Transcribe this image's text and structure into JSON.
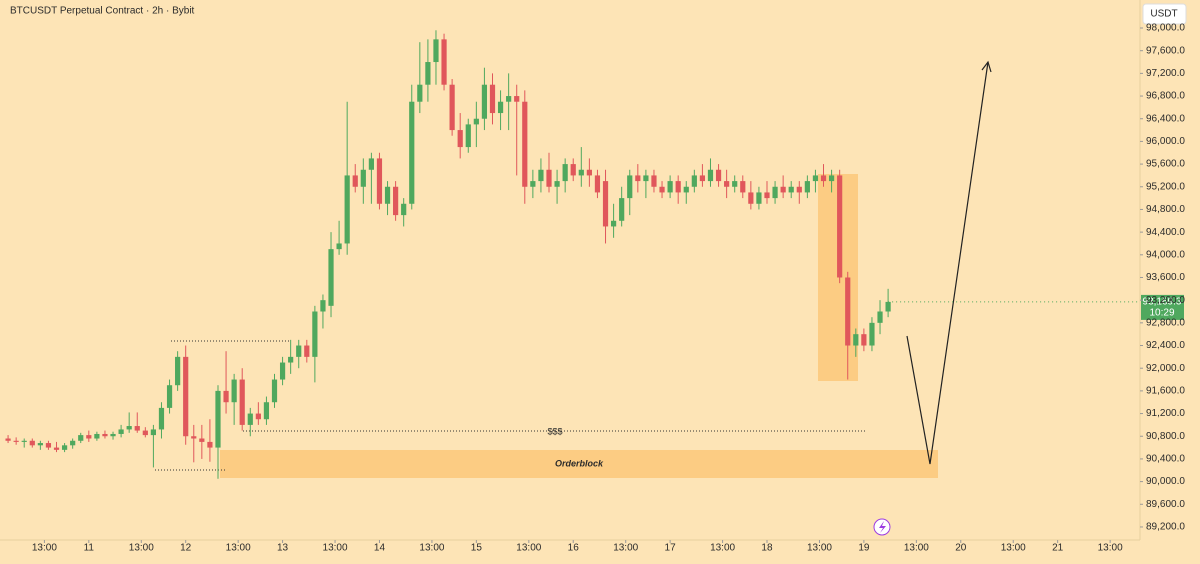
{
  "header": {
    "title": "BTCUSDT Perpetual Contract · 2h · Bybit",
    "currency": "USDT"
  },
  "chart_data": {
    "type": "candlestick",
    "colors": {
      "up": "#4fa85e",
      "down": "#e0575b"
    },
    "xlim": [
      -1,
      140.2
    ],
    "ylim": [
      88970,
      98494
    ],
    "xticks": [
      {
        "value": 4.5,
        "label": "13:00"
      },
      {
        "value": 10,
        "label": "11"
      },
      {
        "value": 16.5,
        "label": "13:00"
      },
      {
        "value": 22,
        "label": "12"
      },
      {
        "value": 28.5,
        "label": "13:00"
      },
      {
        "value": 34,
        "label": "13"
      },
      {
        "value": 40.5,
        "label": "13:00"
      },
      {
        "value": 46,
        "label": "14"
      },
      {
        "value": 52.5,
        "label": "13:00"
      },
      {
        "value": 58,
        "label": "15"
      },
      {
        "value": 64.5,
        "label": "13:00"
      },
      {
        "value": 70,
        "label": "16"
      },
      {
        "value": 76.5,
        "label": "13:00"
      },
      {
        "value": 82,
        "label": "17"
      },
      {
        "value": 88.5,
        "label": "13:00"
      },
      {
        "value": 94,
        "label": "18"
      },
      {
        "value": 100.5,
        "label": "13:00"
      },
      {
        "value": 106,
        "label": "19"
      },
      {
        "value": 112.5,
        "label": "13:00"
      },
      {
        "value": 118,
        "label": "20"
      },
      {
        "value": 124.5,
        "label": "13:00"
      },
      {
        "value": 130,
        "label": "21"
      },
      {
        "value": 136.5,
        "label": "13:00"
      }
    ],
    "yticks": [
      {
        "value": 89200,
        "label": "89,200.0"
      },
      {
        "value": 89600,
        "label": "89,600.0"
      },
      {
        "value": 90000,
        "label": "90,000.0"
      },
      {
        "value": 90400,
        "label": "90,400.0"
      },
      {
        "value": 90800,
        "label": "90,800.0"
      },
      {
        "value": 91200,
        "label": "91,200.0"
      },
      {
        "value": 91600,
        "label": "91,600.0"
      },
      {
        "value": 92000,
        "label": "92,000.0"
      },
      {
        "value": 92400,
        "label": "92,400.0"
      },
      {
        "value": 92800,
        "label": "92,800.0"
      },
      {
        "value": 93200,
        "label": "93,200.0"
      },
      {
        "value": 93600,
        "label": "93,600.0"
      },
      {
        "value": 94000,
        "label": "94,000.0"
      },
      {
        "value": 94400,
        "label": "94,400.0"
      },
      {
        "value": 94800,
        "label": "94,800.0"
      },
      {
        "value": 95200,
        "label": "95,200.0"
      },
      {
        "value": 95600,
        "label": "95,600.0"
      },
      {
        "value": 96000,
        "label": "96,000.0"
      },
      {
        "value": 96400,
        "label": "96,400.0"
      },
      {
        "value": 96800,
        "label": "96,800.0"
      },
      {
        "value": 97200,
        "label": "97,200.0"
      },
      {
        "value": 97600,
        "label": "97,600.0"
      },
      {
        "value": 98000,
        "label": "98,000.0"
      }
    ],
    "ohlc": [
      [
        90760,
        90820,
        90680,
        90720
      ],
      [
        90720,
        90780,
        90650,
        90700
      ],
      [
        90700,
        90760,
        90600,
        90720
      ],
      [
        90720,
        90760,
        90600,
        90640
      ],
      [
        90640,
        90720,
        90560,
        90680
      ],
      [
        90680,
        90720,
        90560,
        90600
      ],
      [
        90600,
        90700,
        90520,
        90560
      ],
      [
        90560,
        90680,
        90520,
        90640
      ],
      [
        90640,
        90760,
        90580,
        90720
      ],
      [
        90720,
        90860,
        90680,
        90820
      ],
      [
        90820,
        90900,
        90700,
        90760
      ],
      [
        90760,
        90880,
        90720,
        90840
      ],
      [
        90840,
        90900,
        90760,
        90800
      ],
      [
        90800,
        90880,
        90740,
        90840
      ],
      [
        90840,
        91000,
        90780,
        90920
      ],
      [
        90920,
        91220,
        90860,
        90980
      ],
      [
        90980,
        91220,
        90860,
        90900
      ],
      [
        90900,
        90960,
        90780,
        90820
      ],
      [
        90820,
        91000,
        90250,
        90920
      ],
      [
        90920,
        91400,
        90760,
        91300
      ],
      [
        91300,
        91800,
        91200,
        91700
      ],
      [
        91700,
        92300,
        91600,
        92200
      ],
      [
        92200,
        92400,
        90650,
        90800
      ],
      [
        90800,
        91000,
        90340,
        90760
      ],
      [
        90760,
        91000,
        90400,
        90700
      ],
      [
        90700,
        91100,
        90350,
        90600
      ],
      [
        90600,
        91700,
        90050,
        91600
      ],
      [
        91600,
        92300,
        91200,
        91400
      ],
      [
        91400,
        91900,
        91000,
        91800
      ],
      [
        91800,
        92000,
        90900,
        91000
      ],
      [
        91000,
        91300,
        90800,
        91200
      ],
      [
        91200,
        91400,
        91000,
        91100
      ],
      [
        91100,
        91500,
        91000,
        91400
      ],
      [
        91400,
        91900,
        91300,
        91800
      ],
      [
        91800,
        92200,
        91700,
        92100
      ],
      [
        92100,
        92500,
        91900,
        92200
      ],
      [
        92200,
        92500,
        92000,
        92400
      ],
      [
        92400,
        92500,
        92100,
        92200
      ],
      [
        92200,
        93100,
        91750,
        93000
      ],
      [
        93000,
        93300,
        92700,
        93200
      ],
      [
        93100,
        94400,
        92900,
        94100
      ],
      [
        94100,
        94600,
        94000,
        94200
      ],
      [
        94200,
        96700,
        94000,
        95400
      ],
      [
        95400,
        95600,
        95100,
        95200
      ],
      [
        95200,
        95700,
        94900,
        95500
      ],
      [
        95500,
        95800,
        94900,
        95700
      ],
      [
        95700,
        95800,
        94800,
        94900
      ],
      [
        94900,
        95300,
        94700,
        95200
      ],
      [
        95200,
        95300,
        94600,
        94700
      ],
      [
        94700,
        95000,
        94500,
        94900
      ],
      [
        94900,
        97000,
        94800,
        96700
      ],
      [
        96700,
        97750,
        96500,
        97000
      ],
      [
        97000,
        97800,
        96700,
        97400
      ],
      [
        97400,
        97960,
        97000,
        97800
      ],
      [
        97800,
        97900,
        96900,
        97000
      ],
      [
        97000,
        97100,
        96100,
        96200
      ],
      [
        96200,
        96500,
        95700,
        95900
      ],
      [
        95900,
        96400,
        95800,
        96300
      ],
      [
        96300,
        96700,
        95900,
        96400
      ],
      [
        96400,
        97300,
        96200,
        97000
      ],
      [
        97000,
        97200,
        96300,
        96500
      ],
      [
        96500,
        96900,
        96200,
        96700
      ],
      [
        96700,
        97200,
        96200,
        96800
      ],
      [
        96800,
        97000,
        95400,
        96700
      ],
      [
        96700,
        96900,
        94900,
        95200
      ],
      [
        95200,
        95500,
        95000,
        95300
      ],
      [
        95300,
        95700,
        95100,
        95500
      ],
      [
        95500,
        95800,
        95100,
        95200
      ],
      [
        95200,
        95500,
        94900,
        95300
      ],
      [
        95300,
        95700,
        95100,
        95600
      ],
      [
        95600,
        95700,
        95300,
        95400
      ],
      [
        95400,
        95900,
        95200,
        95500
      ],
      [
        95500,
        95700,
        95200,
        95400
      ],
      [
        95400,
        95500,
        95000,
        95100
      ],
      [
        95300,
        95500,
        94200,
        94500
      ],
      [
        94500,
        94900,
        94300,
        94600
      ],
      [
        94600,
        95200,
        94500,
        95000
      ],
      [
        95000,
        95500,
        94700,
        95400
      ],
      [
        95400,
        95600,
        95100,
        95300
      ],
      [
        95300,
        95500,
        95000,
        95400
      ],
      [
        95400,
        95500,
        95100,
        95200
      ],
      [
        95200,
        95300,
        95000,
        95100
      ],
      [
        95100,
        95400,
        95000,
        95300
      ],
      [
        95300,
        95400,
        94900,
        95100
      ],
      [
        95100,
        95300,
        94900,
        95200
      ],
      [
        95200,
        95500,
        95100,
        95400
      ],
      [
        95400,
        95600,
        95200,
        95300
      ],
      [
        95300,
        95700,
        95200,
        95500
      ],
      [
        95500,
        95600,
        95200,
        95300
      ],
      [
        95300,
        95500,
        95000,
        95200
      ],
      [
        95200,
        95400,
        95100,
        95300
      ],
      [
        95300,
        95400,
        95000,
        95100
      ],
      [
        95100,
        95300,
        94800,
        94900
      ],
      [
        94900,
        95200,
        94800,
        95100
      ],
      [
        95100,
        95300,
        94900,
        95000
      ],
      [
        95000,
        95300,
        94900,
        95200
      ],
      [
        95200,
        95400,
        95000,
        95100
      ],
      [
        95100,
        95300,
        95000,
        95200
      ],
      [
        95200,
        95300,
        94900,
        95100
      ],
      [
        95100,
        95400,
        95000,
        95300
      ],
      [
        95300,
        95500,
        95100,
        95400
      ],
      [
        95400,
        95600,
        95200,
        95300
      ],
      [
        95300,
        95500,
        95100,
        95400
      ],
      [
        95400,
        95500,
        93500,
        93600
      ],
      [
        93600,
        93700,
        91800,
        92400
      ],
      [
        92400,
        92700,
        92200,
        92600
      ],
      [
        92600,
        92700,
        92300,
        92400
      ],
      [
        92400,
        92900,
        92300,
        92800
      ],
      [
        92800,
        93200,
        92600,
        93000
      ],
      [
        93000,
        93400,
        92900,
        93169.3
      ]
    ],
    "last_price": {
      "label": "93,169.3",
      "countdown": "10:29"
    },
    "annotations": {
      "liquidity": "$$$",
      "orderblock": "Orderblock"
    }
  }
}
